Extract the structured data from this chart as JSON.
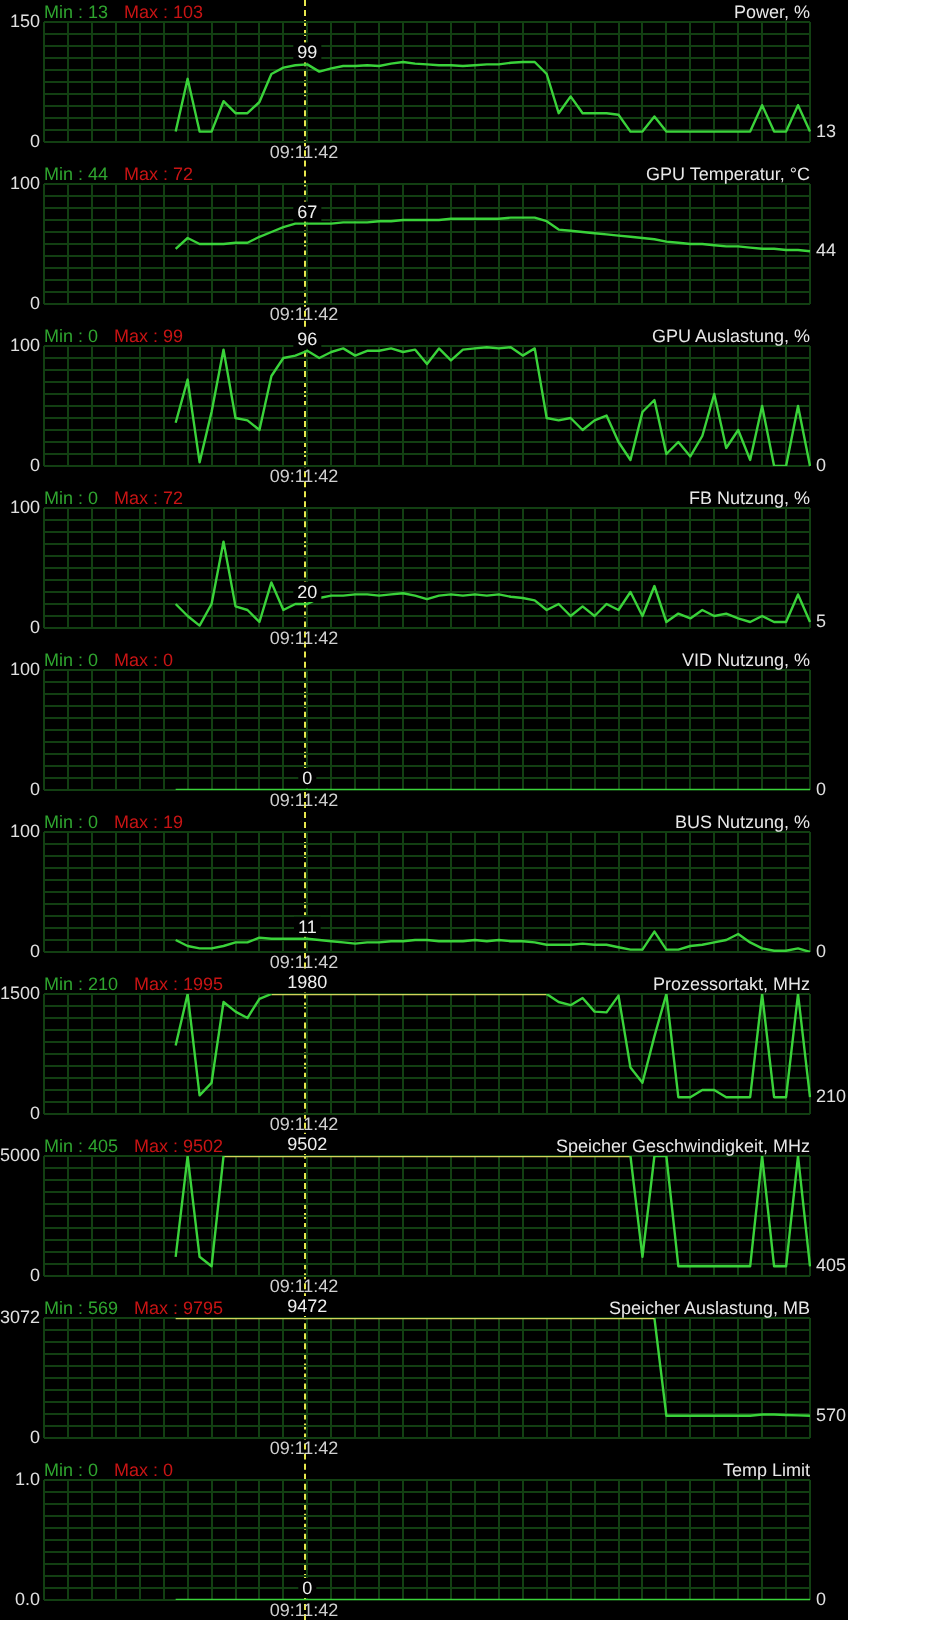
{
  "chart_data": [
    {
      "type": "line",
      "title": "Power, %",
      "tick_labels": "y",
      "grid": true,
      "ylim": [
        0,
        150
      ],
      "yticks": [
        0,
        {
          "value": 15,
          "label": null
        },
        {
          "value": 30,
          "label": null
        },
        {
          "value": 45,
          "label": null
        },
        {
          "value": 60,
          "label": null
        },
        {
          "value": 75,
          "label": null
        },
        {
          "value": 90,
          "label": null
        },
        {
          "value": 105,
          "label": null
        },
        {
          "value": 120,
          "label": null
        },
        {
          "value": 135,
          "label": null
        },
        150
      ],
      "categories": [
        null,
        null,
        null,
        null,
        null,
        null,
        null,
        null,
        null,
        null,
        null,
        null,
        null,
        null,
        null,
        null,
        null,
        null,
        null,
        null,
        null,
        null,
        null,
        null,
        null,
        null,
        null,
        null,
        null,
        null,
        null,
        null,
        null,
        null,
        null,
        null,
        null,
        null,
        null,
        null,
        null,
        null,
        null,
        null,
        null,
        null,
        null,
        null,
        null,
        null,
        null,
        null,
        null,
        null,
        null,
        null,
        null,
        null,
        null,
        null,
        null,
        null,
        null,
        null,
        null
      ],
      "series": [
        {
          "color": "#3ad23a",
          "values": [
            null,
            null,
            null,
            null,
            null,
            null,
            null,
            null,
            null,
            null,
            null,
            13,
            79,
            13,
            13,
            51,
            36,
            36,
            50,
            85,
            93,
            96,
            97,
            88,
            92,
            95,
            95,
            96,
            95,
            98,
            100,
            98,
            97,
            96,
            96,
            95,
            96,
            97,
            97,
            99,
            100,
            100,
            85,
            36,
            57,
            36,
            36,
            36,
            34,
            13,
            13,
            32,
            13,
            13,
            13,
            13,
            13,
            13,
            13,
            13,
            46,
            13,
            13,
            46,
            13
          ]
        }
      ],
      "annotations": [
        "Min : 13",
        "Max : 103",
        "99",
        "09:11:42",
        "13"
      ]
    },
    {
      "type": "line",
      "title": "GPU Temperatur, °C",
      "tick_labels": "y",
      "grid": true,
      "ylim": [
        0,
        100
      ],
      "yticks": [
        0,
        {
          "value": 10,
          "label": null
        },
        {
          "value": 20,
          "label": null
        },
        {
          "value": 30,
          "label": null
        },
        {
          "value": 40,
          "label": null
        },
        {
          "value": 50,
          "label": null
        },
        {
          "value": 60,
          "label": null
        },
        {
          "value": 70,
          "label": null
        },
        {
          "value": 80,
          "label": null
        },
        {
          "value": 90,
          "label": null
        },
        100
      ],
      "categories": [
        null,
        null,
        null,
        null,
        null,
        null,
        null,
        null,
        null,
        null,
        null,
        null,
        null,
        null,
        null,
        null,
        null,
        null,
        null,
        null,
        null,
        null,
        null,
        null,
        null,
        null,
        null,
        null,
        null,
        null,
        null,
        null,
        null,
        null,
        null,
        null,
        null,
        null,
        null,
        null,
        null,
        null,
        null,
        null,
        null,
        null,
        null,
        null,
        null,
        null,
        null,
        null,
        null,
        null,
        null,
        null,
        null,
        null,
        null,
        null,
        null,
        null,
        null,
        null,
        null
      ],
      "series": [
        {
          "color": "#3ad23a",
          "values": [
            null,
            null,
            null,
            null,
            null,
            null,
            null,
            null,
            null,
            null,
            null,
            46,
            55,
            50,
            50,
            50,
            51,
            51,
            56,
            60,
            64,
            67,
            67,
            67,
            67,
            68,
            68,
            68,
            69,
            69,
            70,
            70,
            70,
            70,
            71,
            71,
            71,
            71,
            71,
            72,
            72,
            72,
            69,
            62,
            61,
            60,
            59,
            58,
            57,
            56,
            55,
            54,
            52,
            51,
            50,
            50,
            49,
            48,
            48,
            47,
            46,
            46,
            45,
            45,
            44
          ]
        }
      ],
      "annotations": [
        "Min : 44",
        "Max : 72",
        "67",
        "09:11:42",
        "44"
      ]
    },
    {
      "type": "line",
      "title": "GPU Auslastung, %",
      "tick_labels": "y",
      "grid": true,
      "ylim": [
        0,
        100
      ],
      "yticks": [
        0,
        {
          "value": 10,
          "label": null
        },
        {
          "value": 20,
          "label": null
        },
        {
          "value": 30,
          "label": null
        },
        {
          "value": 40,
          "label": null
        },
        {
          "value": 50,
          "label": null
        },
        {
          "value": 60,
          "label": null
        },
        {
          "value": 70,
          "label": null
        },
        {
          "value": 80,
          "label": null
        },
        {
          "value": 90,
          "label": null
        },
        100
      ],
      "categories": [
        null,
        null,
        null,
        null,
        null,
        null,
        null,
        null,
        null,
        null,
        null,
        null,
        null,
        null,
        null,
        null,
        null,
        null,
        null,
        null,
        null,
        null,
        null,
        null,
        null,
        null,
        null,
        null,
        null,
        null,
        null,
        null,
        null,
        null,
        null,
        null,
        null,
        null,
        null,
        null,
        null,
        null,
        null,
        null,
        null,
        null,
        null,
        null,
        null,
        null,
        null,
        null,
        null,
        null,
        null,
        null,
        null,
        null,
        null,
        null,
        null,
        null,
        null,
        null,
        null
      ],
      "series": [
        {
          "color": "#3ad23a",
          "values": [
            null,
            null,
            null,
            null,
            null,
            null,
            null,
            null,
            null,
            null,
            null,
            36,
            72,
            3,
            45,
            97,
            40,
            38,
            30,
            75,
            90,
            92,
            96,
            90,
            95,
            98,
            92,
            96,
            96,
            98,
            95,
            97,
            85,
            98,
            88,
            97,
            98,
            99,
            98,
            99,
            92,
            98,
            40,
            38,
            40,
            30,
            38,
            42,
            20,
            5,
            45,
            55,
            10,
            20,
            8,
            25,
            60,
            15,
            30,
            5,
            50,
            0,
            0,
            50,
            0
          ]
        }
      ],
      "annotations": [
        "Min : 0",
        "Max : 99",
        "96",
        "09:11:42",
        "0"
      ]
    },
    {
      "type": "line",
      "title": "FB Nutzung, %",
      "tick_labels": "y",
      "grid": true,
      "ylim": [
        0,
        100
      ],
      "yticks": [
        0,
        {
          "value": 10,
          "label": null
        },
        {
          "value": 20,
          "label": null
        },
        {
          "value": 30,
          "label": null
        },
        {
          "value": 40,
          "label": null
        },
        {
          "value": 50,
          "label": null
        },
        {
          "value": 60,
          "label": null
        },
        {
          "value": 70,
          "label": null
        },
        {
          "value": 80,
          "label": null
        },
        {
          "value": 90,
          "label": null
        },
        100
      ],
      "categories": [
        null,
        null,
        null,
        null,
        null,
        null,
        null,
        null,
        null,
        null,
        null,
        null,
        null,
        null,
        null,
        null,
        null,
        null,
        null,
        null,
        null,
        null,
        null,
        null,
        null,
        null,
        null,
        null,
        null,
        null,
        null,
        null,
        null,
        null,
        null,
        null,
        null,
        null,
        null,
        null,
        null,
        null,
        null,
        null,
        null,
        null,
        null,
        null,
        null,
        null,
        null,
        null,
        null,
        null,
        null,
        null,
        null,
        null,
        null,
        null,
        null,
        null,
        null,
        null,
        null
      ],
      "series": [
        {
          "color": "#3ad23a",
          "values": [
            null,
            null,
            null,
            null,
            null,
            null,
            null,
            null,
            null,
            null,
            null,
            20,
            10,
            2,
            20,
            72,
            18,
            15,
            5,
            38,
            15,
            20,
            20,
            25,
            27,
            27,
            28,
            28,
            27,
            28,
            29,
            27,
            24,
            27,
            28,
            27,
            28,
            27,
            28,
            26,
            25,
            23,
            15,
            20,
            10,
            18,
            10,
            20,
            15,
            30,
            10,
            35,
            5,
            12,
            8,
            15,
            10,
            12,
            8,
            5,
            10,
            5,
            5,
            28,
            5
          ]
        }
      ],
      "annotations": [
        "Min : 0",
        "Max : 72",
        "20",
        "09:11:42",
        "5"
      ]
    },
    {
      "type": "line",
      "title": "VID Nutzung, %",
      "tick_labels": "y",
      "grid": true,
      "ylim": [
        0,
        100
      ],
      "yticks": [
        0,
        {
          "value": 10,
          "label": null
        },
        {
          "value": 20,
          "label": null
        },
        {
          "value": 30,
          "label": null
        },
        {
          "value": 40,
          "label": null
        },
        {
          "value": 50,
          "label": null
        },
        {
          "value": 60,
          "label": null
        },
        {
          "value": 70,
          "label": null
        },
        {
          "value": 80,
          "label": null
        },
        {
          "value": 90,
          "label": null
        },
        100
      ],
      "categories": [
        null,
        null,
        null,
        null,
        null,
        null,
        null,
        null,
        null,
        null,
        null,
        null,
        null,
        null,
        null,
        null,
        null,
        null,
        null,
        null,
        null,
        null,
        null,
        null,
        null,
        null,
        null,
        null,
        null,
        null,
        null,
        null,
        null,
        null,
        null,
        null,
        null,
        null,
        null,
        null,
        null,
        null,
        null,
        null,
        null,
        null,
        null,
        null,
        null,
        null,
        null,
        null,
        null,
        null,
        null,
        null,
        null,
        null,
        null,
        null,
        null,
        null,
        null,
        null,
        null
      ],
      "series": [
        {
          "color": "#3ad23a",
          "values": [
            null,
            null,
            null,
            null,
            null,
            null,
            null,
            null,
            null,
            null,
            null,
            0,
            0,
            0,
            0,
            0,
            0,
            0,
            0,
            0,
            0,
            0,
            0,
            0,
            0,
            0,
            0,
            0,
            0,
            0,
            0,
            0,
            0,
            0,
            0,
            0,
            0,
            0,
            0,
            0,
            0,
            0,
            0,
            0,
            0,
            0,
            0,
            0,
            0,
            0,
            0,
            0,
            0,
            0,
            0,
            0,
            0,
            0,
            0,
            0,
            0,
            0,
            0,
            0,
            0
          ]
        }
      ],
      "annotations": [
        "Min : 0",
        "Max : 0",
        "0",
        "09:11:42",
        "0"
      ]
    },
    {
      "type": "line",
      "title": "BUS Nutzung, %",
      "tick_labels": "y",
      "grid": true,
      "ylim": [
        0,
        100
      ],
      "yticks": [
        0,
        {
          "value": 10,
          "label": null
        },
        {
          "value": 20,
          "label": null
        },
        {
          "value": 30,
          "label": null
        },
        {
          "value": 40,
          "label": null
        },
        {
          "value": 50,
          "label": null
        },
        {
          "value": 60,
          "label": null
        },
        {
          "value": 70,
          "label": null
        },
        {
          "value": 80,
          "label": null
        },
        {
          "value": 90,
          "label": null
        },
        100
      ],
      "categories": [
        null,
        null,
        null,
        null,
        null,
        null,
        null,
        null,
        null,
        null,
        null,
        null,
        null,
        null,
        null,
        null,
        null,
        null,
        null,
        null,
        null,
        null,
        null,
        null,
        null,
        null,
        null,
        null,
        null,
        null,
        null,
        null,
        null,
        null,
        null,
        null,
        null,
        null,
        null,
        null,
        null,
        null,
        null,
        null,
        null,
        null,
        null,
        null,
        null,
        null,
        null,
        null,
        null,
        null,
        null,
        null,
        null,
        null,
        null,
        null,
        null,
        null,
        null,
        null,
        null
      ],
      "series": [
        {
          "color": "#3ad23a",
          "values": [
            null,
            null,
            null,
            null,
            null,
            null,
            null,
            null,
            null,
            null,
            null,
            10,
            5,
            3,
            3,
            5,
            8,
            8,
            12,
            11,
            11,
            11,
            11,
            10,
            9,
            8,
            7,
            8,
            8,
            9,
            9,
            10,
            10,
            9,
            9,
            9,
            10,
            9,
            10,
            9,
            9,
            8,
            6,
            6,
            6,
            7,
            6,
            6,
            4,
            2,
            2,
            17,
            2,
            2,
            5,
            6,
            8,
            10,
            15,
            8,
            3,
            1,
            1,
            3,
            0
          ]
        }
      ],
      "annotations": [
        "Min : 0",
        "Max : 19",
        "11",
        "09:11:42",
        "0"
      ]
    },
    {
      "type": "line",
      "title": "Prozessortakt, MHz",
      "tick_labels": "y",
      "grid": true,
      "ylim": [
        0,
        1500
      ],
      "yticks": [
        0,
        {
          "value": 150,
          "label": null
        },
        {
          "value": 300,
          "label": null
        },
        {
          "value": 450,
          "label": null
        },
        {
          "value": 600,
          "label": null
        },
        {
          "value": 750,
          "label": null
        },
        {
          "value": 900,
          "label": null
        },
        {
          "value": 1050,
          "label": null
        },
        {
          "value": 1200,
          "label": null
        },
        {
          "value": 1350,
          "label": null
        },
        1500
      ],
      "categories": [
        null,
        null,
        null,
        null,
        null,
        null,
        null,
        null,
        null,
        null,
        null,
        null,
        null,
        null,
        null,
        null,
        null,
        null,
        null,
        null,
        null,
        null,
        null,
        null,
        null,
        null,
        null,
        null,
        null,
        null,
        null,
        null,
        null,
        null,
        null,
        null,
        null,
        null,
        null,
        null,
        null,
        null,
        null,
        null,
        null,
        null,
        null,
        null,
        null,
        null,
        null,
        null,
        null,
        null,
        null,
        null,
        null,
        null,
        null,
        null,
        null,
        null,
        null,
        null,
        null
      ],
      "series": [
        {
          "color": "#3ad23a",
          "values": [
            null,
            null,
            null,
            null,
            null,
            null,
            null,
            null,
            null,
            null,
            null,
            855,
            1500,
            233,
            390,
            1400,
            1280,
            1200,
            1440,
            1500,
            null,
            null,
            null,
            null,
            null,
            null,
            null,
            null,
            null,
            null,
            null,
            null,
            null,
            null,
            null,
            null,
            null,
            null,
            null,
            null,
            null,
            null,
            1500,
            1400,
            1360,
            1450,
            1280,
            1270,
            1480,
            580,
            390,
            970,
            1500,
            210,
            210,
            300,
            300,
            210,
            210,
            210,
            1500,
            210,
            210,
            1500,
            210
          ]
        },
        {
          "color": "#d2d25a",
          "values": [
            null,
            null,
            null,
            null,
            null,
            null,
            null,
            null,
            null,
            null,
            null,
            null,
            null,
            null,
            null,
            null,
            null,
            null,
            null,
            1500,
            1500,
            1500,
            1500,
            1500,
            1500,
            1500,
            1500,
            1500,
            1500,
            1500,
            1500,
            1500,
            1500,
            1500,
            1500,
            1500,
            1500,
            1500,
            1500,
            1500,
            1500,
            1500,
            1500,
            null,
            null,
            null,
            null,
            null,
            null,
            null,
            null,
            null,
            null,
            null,
            null,
            null,
            null,
            null,
            null,
            null,
            null,
            null,
            null,
            null,
            null
          ]
        }
      ],
      "annotations": [
        "Min : 210",
        "Max : 1995",
        "1980",
        "09:11:42",
        "210"
      ]
    },
    {
      "type": "line",
      "title": "Speicher Geschwindigkeit, MHz",
      "tick_labels": "y",
      "grid": true,
      "ylim": [
        0,
        5000
      ],
      "yticks": [
        0,
        {
          "value": 500,
          "label": null
        },
        {
          "value": 1000,
          "label": null
        },
        {
          "value": 1500,
          "label": null
        },
        {
          "value": 2000,
          "label": null
        },
        {
          "value": 2500,
          "label": null
        },
        {
          "value": 3000,
          "label": null
        },
        {
          "value": 3500,
          "label": null
        },
        {
          "value": 4000,
          "label": null
        },
        {
          "value": 4500,
          "label": null
        },
        5000
      ],
      "categories": [
        null,
        null,
        null,
        null,
        null,
        null,
        null,
        null,
        null,
        null,
        null,
        null,
        null,
        null,
        null,
        null,
        null,
        null,
        null,
        null,
        null,
        null,
        null,
        null,
        null,
        null,
        null,
        null,
        null,
        null,
        null,
        null,
        null,
        null,
        null,
        null,
        null,
        null,
        null,
        null,
        null,
        null,
        null,
        null,
        null,
        null,
        null,
        null,
        null,
        null,
        null,
        null,
        null,
        null,
        null,
        null,
        null,
        null,
        null,
        null,
        null,
        null,
        null,
        null,
        null
      ],
      "series": [
        {
          "color": "#3ad23a",
          "values": [
            null,
            null,
            null,
            null,
            null,
            null,
            null,
            null,
            null,
            null,
            null,
            800,
            5000,
            800,
            405,
            5000,
            null,
            null,
            null,
            null,
            null,
            null,
            null,
            null,
            null,
            null,
            null,
            null,
            null,
            null,
            null,
            null,
            null,
            null,
            null,
            null,
            null,
            null,
            null,
            null,
            null,
            null,
            null,
            null,
            null,
            null,
            null,
            null,
            null,
            5000,
            800,
            5000,
            5000,
            405,
            405,
            405,
            405,
            405,
            405,
            405,
            5000,
            405,
            405,
            5000,
            405
          ]
        },
        {
          "color": "#d2d25a",
          "values": [
            null,
            null,
            null,
            null,
            null,
            null,
            null,
            null,
            null,
            null,
            null,
            null,
            null,
            null,
            null,
            5000,
            5000,
            5000,
            5000,
            5000,
            5000,
            5000,
            5000,
            5000,
            5000,
            5000,
            5000,
            5000,
            5000,
            5000,
            5000,
            5000,
            5000,
            5000,
            5000,
            5000,
            5000,
            5000,
            5000,
            5000,
            5000,
            5000,
            5000,
            5000,
            5000,
            5000,
            5000,
            5000,
            5000,
            5000,
            null,
            null,
            null,
            null,
            null,
            null,
            null,
            null,
            null,
            null,
            null,
            null,
            null,
            null,
            null
          ]
        }
      ],
      "annotations": [
        "Min : 405",
        "Max : 9502",
        "9502",
        "09:11:42",
        "405"
      ]
    },
    {
      "type": "line",
      "title": "Speicher Auslastung, MB",
      "tick_labels": "y",
      "grid": true,
      "ylim": [
        0,
        3072
      ],
      "yticks": [
        0,
        {
          "value": 307.2,
          "label": null
        },
        {
          "value": 614.4,
          "label": null
        },
        {
          "value": 921.6,
          "label": null
        },
        {
          "value": 1228.8,
          "label": null
        },
        {
          "value": 1536,
          "label": null
        },
        {
          "value": 1843.2,
          "label": null
        },
        {
          "value": 2150.4,
          "label": null
        },
        {
          "value": 2457.6,
          "label": null
        },
        {
          "value": 2764.8,
          "label": null
        },
        3072
      ],
      "categories": [
        null,
        null,
        null,
        null,
        null,
        null,
        null,
        null,
        null,
        null,
        null,
        null,
        null,
        null,
        null,
        null,
        null,
        null,
        null,
        null,
        null,
        null,
        null,
        null,
        null,
        null,
        null,
        null,
        null,
        null,
        null,
        null,
        null,
        null,
        null,
        null,
        null,
        null,
        null,
        null,
        null,
        null,
        null,
        null,
        null,
        null,
        null,
        null,
        null,
        null,
        null,
        null,
        null,
        null,
        null,
        null,
        null,
        null,
        null,
        null,
        null,
        null,
        null,
        null,
        null
      ],
      "series": [
        {
          "color": "#d2d25a",
          "values": [
            null,
            null,
            null,
            null,
            null,
            null,
            null,
            null,
            null,
            null,
            null,
            3072,
            3072,
            3072,
            3072,
            3072,
            3072,
            3072,
            3072,
            3072,
            3072,
            3072,
            3072,
            3072,
            3072,
            3072,
            3072,
            3072,
            3072,
            3072,
            3072,
            3072,
            3072,
            3072,
            3072,
            3072,
            3072,
            3072,
            3072,
            3072,
            3072,
            3072,
            3072,
            3072,
            3072,
            3072,
            3072,
            3072,
            3072,
            3072,
            3072,
            3072,
            null,
            null,
            null,
            null,
            null,
            null,
            null,
            null,
            null,
            null,
            null,
            null,
            null
          ]
        },
        {
          "color": "#3ad23a",
          "values": [
            null,
            null,
            null,
            null,
            null,
            null,
            null,
            null,
            null,
            null,
            null,
            null,
            null,
            null,
            null,
            null,
            null,
            null,
            null,
            null,
            null,
            null,
            null,
            null,
            null,
            null,
            null,
            null,
            null,
            null,
            null,
            null,
            null,
            null,
            null,
            null,
            null,
            null,
            null,
            null,
            null,
            null,
            null,
            null,
            null,
            null,
            null,
            null,
            null,
            null,
            null,
            3072,
            570,
            570,
            570,
            570,
            570,
            570,
            570,
            570,
            600,
            600,
            590,
            580,
            570
          ]
        }
      ],
      "annotations": [
        "Min : 569",
        "Max : 9795",
        "9472",
        "09:11:42",
        "570"
      ]
    },
    {
      "type": "line",
      "title": "Temp Limit",
      "tick_labels": "y",
      "grid": true,
      "ylim": [
        0,
        1
      ],
      "yticks": [
        {
          "value": 0,
          "label": "0.0"
        },
        {
          "value": 0.1,
          "label": null
        },
        {
          "value": 0.2,
          "label": null
        },
        {
          "value": 0.3,
          "label": null
        },
        {
          "value": 0.4,
          "label": null
        },
        {
          "value": 0.5,
          "label": null
        },
        {
          "value": 0.6,
          "label": null
        },
        {
          "value": 0.7,
          "label": null
        },
        {
          "value": 0.8,
          "label": null
        },
        {
          "value": 0.9,
          "label": null
        },
        {
          "value": 1,
          "label": "1.0"
        }
      ],
      "categories": [
        null,
        null,
        null,
        null,
        null,
        null,
        null,
        null,
        null,
        null,
        null,
        null,
        null,
        null,
        null,
        null,
        null,
        null,
        null,
        null,
        null,
        null,
        null,
        null,
        null,
        null,
        null,
        null,
        null,
        null,
        null,
        null,
        null,
        null,
        null,
        null,
        null,
        null,
        null,
        null,
        null,
        null,
        null,
        null,
        null,
        null,
        null,
        null,
        null,
        null,
        null,
        null,
        null,
        null,
        null,
        null,
        null,
        null,
        null,
        null,
        null,
        null,
        null,
        null,
        null
      ],
      "series": [
        {
          "color": "#3ad23a",
          "values": [
            null,
            null,
            null,
            null,
            null,
            null,
            null,
            null,
            null,
            null,
            null,
            0,
            0,
            0,
            0,
            0,
            0,
            0,
            0,
            0,
            0,
            0,
            0,
            0,
            0,
            0,
            0,
            0,
            0,
            0,
            0,
            0,
            0,
            0,
            0,
            0,
            0,
            0,
            0,
            0,
            0,
            0,
            0,
            0,
            0,
            0,
            0,
            0,
            0,
            0,
            0,
            0,
            0,
            0,
            0,
            0,
            0,
            0,
            0,
            0,
            0,
            0,
            0,
            0,
            0
          ]
        }
      ],
      "annotations": [
        "Min : 0",
        "Max : 0",
        "0",
        "09:11:42",
        "0"
      ]
    }
  ]
}
